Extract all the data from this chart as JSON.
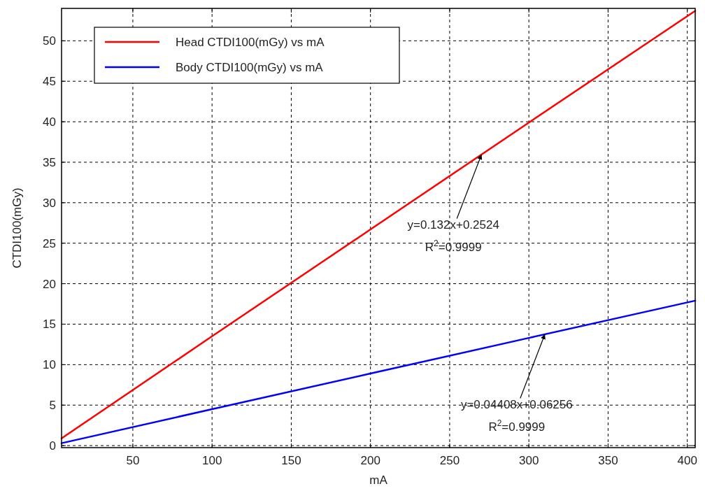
{
  "chart_data": {
    "type": "line",
    "xlabel": "mA",
    "ylabel": "CTDI100(mGy)",
    "xlim": [
      5,
      405
    ],
    "xticks": [
      50,
      100,
      150,
      200,
      250,
      300,
      350,
      400
    ],
    "ylim": [
      -0.25,
      54
    ],
    "yticks": [
      0,
      5,
      10,
      15,
      20,
      25,
      30,
      35,
      40,
      45,
      50
    ],
    "grid": true,
    "legend": "top left",
    "line_style": "solid",
    "marker": "none",
    "series": [
      {
        "name": "Head CTDI100(mGy) vs mA",
        "color": "#ff0000",
        "x": [
          5,
          100,
          200,
          300,
          405
        ],
        "values": [
          0.9,
          13.5,
          26.7,
          39.9,
          53.7
        ]
      },
      {
        "name": "Body CTDI100(mGy) vs mA",
        "color": "#0000ff",
        "x": [
          5,
          100,
          200,
          300,
          405
        ],
        "values": [
          0.3,
          4.5,
          8.9,
          13.3,
          17.9
        ]
      }
    ],
    "annotations": [
      {
        "text": "y=0.132x+0.2524\nR$^{2}$=0.9999",
        "x": 270,
        "y": 35.9
      },
      {
        "text": "y=0.04408x+0.06256\nR$^{2}$=0.9999",
        "x": 310,
        "y": 13.7
      }
    ]
  }
}
